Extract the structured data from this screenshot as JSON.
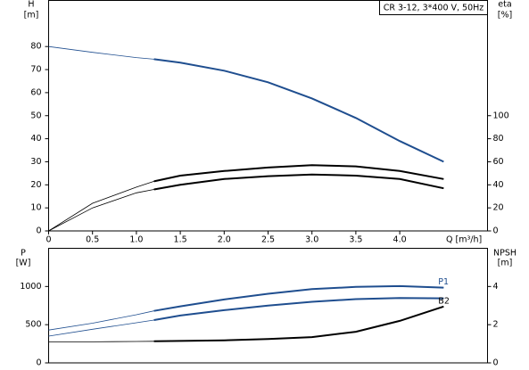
{
  "chart_data": [
    {
      "type": "line",
      "title": "CR 3-12, 3*400 V, 50Hz",
      "ylabel": "H",
      "yunit": "[m]",
      "y2label": "eta",
      "y2unit": "[%]",
      "xlabel": "Q [m³/h]",
      "x": [
        0,
        0.5,
        1.0,
        1.2,
        1.5,
        2.0,
        2.5,
        3.0,
        3.5,
        4.0,
        4.5
      ],
      "xlim": [
        0,
        5
      ],
      "xticks": [
        0,
        0.5,
        {
          "value": 1,
          "label": "1.0"
        },
        1.5,
        {
          "value": 2,
          "label": "2.0"
        },
        2.5,
        {
          "value": 3,
          "label": "3.0"
        },
        3.5,
        {
          "value": 4,
          "label": "4.0"
        }
      ],
      "ylim": [
        0,
        100
      ],
      "yticks": [
        0,
        10,
        20,
        30,
        40,
        50,
        60,
        70,
        80
      ],
      "y2lim": [
        0,
        200
      ],
      "y2ticks": [
        0,
        20,
        40,
        60,
        80,
        100
      ],
      "series": [
        {
          "color": "#1f4e8f",
          "values": [
            80,
            77.5,
            75.2,
            74.5,
            73,
            69.5,
            64.5,
            57.5,
            49,
            39,
            30
          ]
        },
        {
          "color": "#000000",
          "axis": "y2",
          "values": [
            0,
            24,
            38,
            43,
            48,
            52,
            55,
            57,
            56,
            52,
            45
          ]
        },
        {
          "color": "#000000",
          "axis": "y2",
          "values": [
            0,
            20,
            33,
            36,
            40,
            45,
            47.5,
            49,
            48,
            45,
            37
          ]
        }
      ]
    },
    {
      "type": "line",
      "ylabel": "P",
      "yunit": "[W]",
      "y2label": "NPSH",
      "y2unit": "[m]",
      "x": [
        0,
        0.5,
        1.0,
        1.2,
        1.5,
        2.0,
        2.5,
        3.0,
        3.5,
        4.0,
        4.5
      ],
      "xlim": [
        0,
        5
      ],
      "ylim": [
        0,
        1500
      ],
      "yticks": [
        0,
        500,
        1000
      ],
      "y2lim": [
        0,
        6
      ],
      "y2ticks": [
        0,
        2,
        4
      ],
      "series": [
        {
          "name": "P1",
          "color": "#1f4e8f",
          "values": [
            430,
            520,
            630,
            680,
            740,
            830,
            905,
            965,
            995,
            1005,
            985
          ]
        },
        {
          "color": "#1f4e8f",
          "values": [
            350,
            440,
            525,
            560,
            620,
            690,
            750,
            800,
            835,
            850,
            845
          ]
        },
        {
          "name": "B2",
          "color": "#000000",
          "axis": "y2",
          "values": [
            1.1,
            1.1,
            1.12,
            1.13,
            1.15,
            1.18,
            1.25,
            1.35,
            1.63,
            2.2,
            2.95
          ]
        }
      ]
    }
  ]
}
